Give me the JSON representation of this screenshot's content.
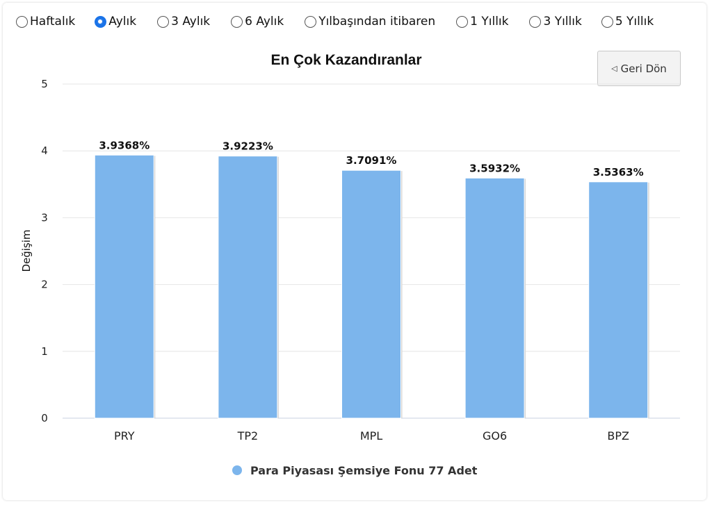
{
  "periods": [
    {
      "label": "Haftalık",
      "selected": false
    },
    {
      "label": "Aylık",
      "selected": true
    },
    {
      "label": "3 Aylık",
      "selected": false
    },
    {
      "label": "6 Aylık",
      "selected": false
    },
    {
      "label": "Yılbaşından itibaren",
      "selected": false
    },
    {
      "label": "1 Yıllık",
      "selected": false
    },
    {
      "label": "3 Yıllık",
      "selected": false
    },
    {
      "label": "5 Yıllık",
      "selected": false
    }
  ],
  "back_button": {
    "label": "Geri Dön",
    "icon": "triangle-left-icon"
  },
  "colors": {
    "bar": "#7cb5ec",
    "grid": "#e6e6e6",
    "accent": "#1a73e8"
  },
  "chart_data": {
    "type": "bar",
    "title": "En Çok Kazandıranlar",
    "ylabel": "Değişim",
    "xlabel": "",
    "ylim": [
      0,
      5
    ],
    "yticks": [
      0,
      1,
      2,
      3,
      4,
      5
    ],
    "categories": [
      "PRY",
      "TP2",
      "MPL",
      "GO6",
      "BPZ"
    ],
    "series": [
      {
        "name": "Para Piyasası Şemsiye Fonu 77 Adet",
        "values": [
          3.9368,
          3.9223,
          3.7091,
          3.5932,
          3.5363
        ],
        "labels": [
          "3.9368%",
          "3.9223%",
          "3.7091%",
          "3.5932%",
          "3.5363%"
        ]
      }
    ],
    "grid": true,
    "legend": "bottom-center"
  }
}
